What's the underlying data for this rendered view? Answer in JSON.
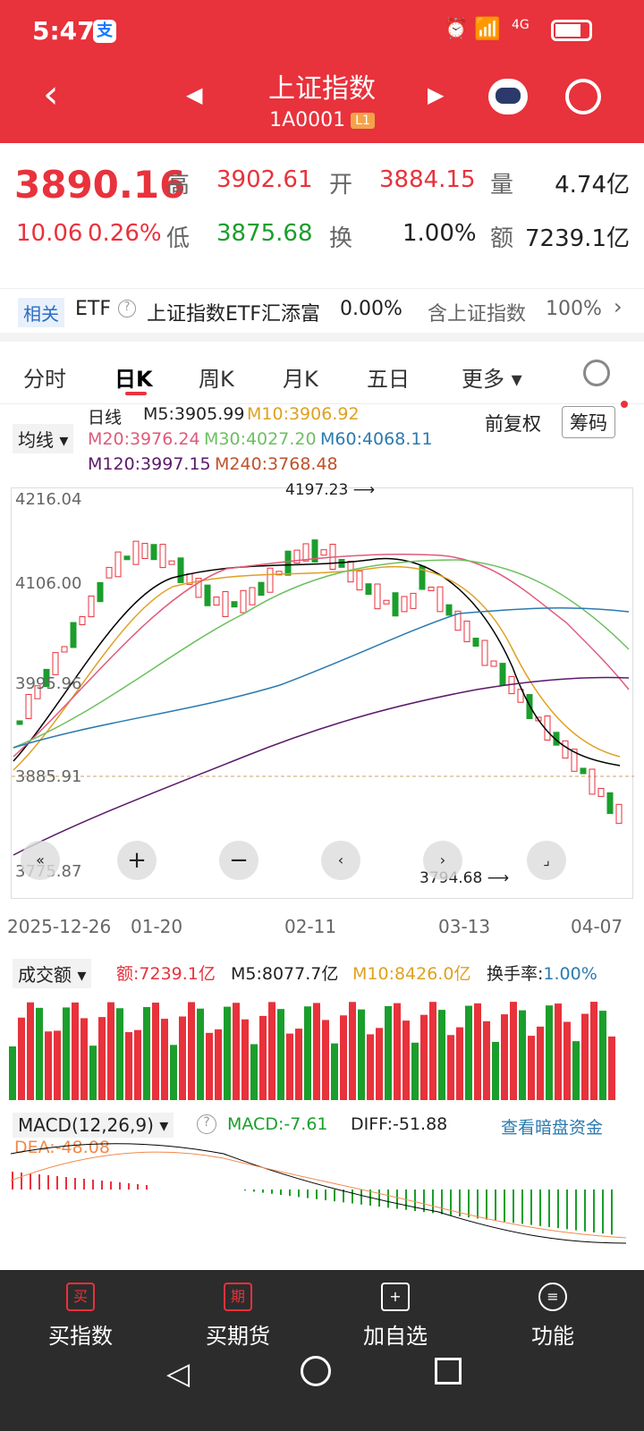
{
  "status": {
    "time": "5:47",
    "badge": "支",
    "network": "4G"
  },
  "header": {
    "title": "上证指数",
    "code": "1A0001",
    "level": "L1"
  },
  "quote": {
    "price": "3890.16",
    "change": "10.06",
    "change_pct": "0.26%",
    "high_label": "高",
    "high": "3902.61",
    "open_label": "开",
    "open": "3884.15",
    "vol_label": "量",
    "vol": "4.74亿",
    "low_label": "低",
    "low": "3875.68",
    "turn_label": "换",
    "turn": "1.00%",
    "amt_label": "额",
    "amt": "7239.1亿"
  },
  "etf": {
    "tag": "相关",
    "etf": "ETF",
    "help": "?",
    "name": "上证指数ETF汇添富",
    "pct": "0.00%",
    "contain": "含上证指数",
    "contain_pct": "100%"
  },
  "tabs": [
    "分时",
    "日K",
    "周K",
    "月K",
    "五日",
    "更多"
  ],
  "ma": {
    "selector": "均线",
    "daily": "日线",
    "m5": "M5:3905.99",
    "m10": "M10:3906.92",
    "m20": "M20:3976.24",
    "m30": "M30:4027.20",
    "m60": "M60:4068.11",
    "m120": "M120:3997.15",
    "m240": "M240:3768.48",
    "adj": "前复权",
    "chip": "筹码"
  },
  "axis": {
    "y1": "4216.04",
    "y2": "4106.00",
    "y3": "3995.96",
    "y4": "3885.91",
    "y5": "3775.87",
    "hi": "4197.23",
    "lo": "3794.68",
    "d1": "2025-12-26",
    "d2": "01-20",
    "d3": "02-11",
    "d4": "03-13",
    "d5": "04-07"
  },
  "vol": {
    "selector": "成交额",
    "amt": "额:7239.1亿",
    "m5": "M5:8077.7亿",
    "m10": "M10:8426.0亿",
    "turn_label": "换手率:",
    "turn": "1.00%"
  },
  "macd": {
    "selector": "MACD(12,26,9)",
    "macd": "MACD:-7.61",
    "diff": "DIFF:-51.88",
    "dea": "DEA:-48.08",
    "link": "查看暗盘资金"
  },
  "nav": {
    "buy_index": "买指数",
    "buy_futures": "买期货",
    "add_watch": "加自选",
    "func": "功能",
    "icon1": "买",
    "icon2": "期"
  },
  "colors": {
    "up": "#e8323c",
    "down": "#1b9e2c",
    "m5": "#000000",
    "m10": "#e0a020",
    "m20": "#e05a7a",
    "m30": "#6cc060",
    "m60": "#2b7ab0",
    "m120": "#5a1a6a"
  }
}
